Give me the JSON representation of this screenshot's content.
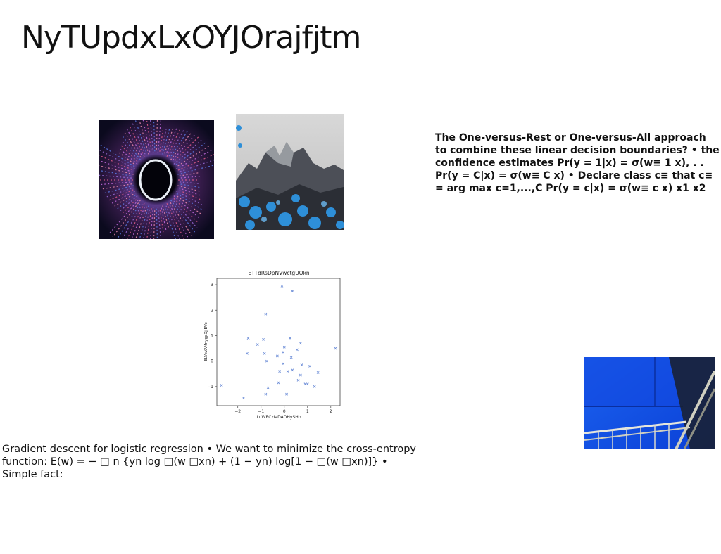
{
  "slide": {
    "title": "NyTUpdxLxOYJOrajfjtm",
    "right_text": "The One-versus-Rest or One-versus-All approach to combine these linear decision boundaries? • the confidence estimates Pr(y = 1|x) = σ(w≡ 1 x), . . Pr(y = C|x) = σ(w≡ C x) • Declare class c≡ that c≡ = arg max c=1,...,C Pr(y = c|x) = σ(w≡ c x) x1 x2",
    "bottom_text": "Gradient descent for logistic regression • We want to minimize the cross-entropy function: E(w) = − □ n {yn log □(w □xn) + (1 − yn) log[1 − □(w □xn)]} • Simple fact:"
  },
  "images": [
    {
      "name": "ring-of-light-photo",
      "colors": [
        "#0b0a1e",
        "#7a2f7a",
        "#e8edf5"
      ]
    },
    {
      "name": "blue-mountain-photo",
      "colors": [
        "#cfd0d0",
        "#2e8fd8",
        "#3a3d45"
      ]
    },
    {
      "name": "blue-room-railing-photo",
      "colors": [
        "#0a3fd6",
        "#1c63f0",
        "#cfcfc0"
      ]
    }
  ],
  "chart_data": {
    "type": "scatter",
    "title": "ETTdRsDpNVwctgUOkn",
    "xlabel": "LuWRCzIaDAOHySHp",
    "ylabel": "ELVeVAMnygpXjJBVe",
    "xlim": [
      -2.9,
      2.4
    ],
    "ylim": [
      -1.75,
      3.25
    ],
    "xticks": [
      -2,
      -1,
      0,
      1,
      2
    ],
    "yticks": [
      -1,
      0,
      1,
      2,
      3
    ],
    "marker": "x",
    "color": "#6f8fd8",
    "points": [
      [
        -0.1,
        2.95
      ],
      [
        0.35,
        2.75
      ],
      [
        -0.8,
        1.85
      ],
      [
        -1.55,
        0.9
      ],
      [
        -0.9,
        0.85
      ],
      [
        -1.15,
        0.65
      ],
      [
        0.25,
        0.9
      ],
      [
        0.7,
        0.7
      ],
      [
        0.0,
        0.55
      ],
      [
        0.55,
        0.45
      ],
      [
        -1.6,
        0.3
      ],
      [
        -0.85,
        0.3
      ],
      [
        -0.05,
        0.35
      ],
      [
        -0.3,
        0.2
      ],
      [
        0.3,
        0.15
      ],
      [
        -0.75,
        0.0
      ],
      [
        -0.05,
        -0.1
      ],
      [
        0.75,
        -0.15
      ],
      [
        1.1,
        -0.2
      ],
      [
        -0.2,
        -0.4
      ],
      [
        0.15,
        -0.4
      ],
      [
        0.35,
        -0.35
      ],
      [
        0.7,
        -0.55
      ],
      [
        1.45,
        -0.45
      ],
      [
        0.6,
        -0.75
      ],
      [
        -0.25,
        -0.85
      ],
      [
        0.9,
        -0.9
      ],
      [
        1.0,
        -0.9
      ],
      [
        1.3,
        -1.0
      ],
      [
        -2.7,
        -0.95
      ],
      [
        -0.7,
        -1.05
      ],
      [
        -0.8,
        -1.3
      ],
      [
        0.1,
        -1.3
      ],
      [
        -1.75,
        -1.45
      ],
      [
        2.2,
        0.5
      ]
    ]
  }
}
